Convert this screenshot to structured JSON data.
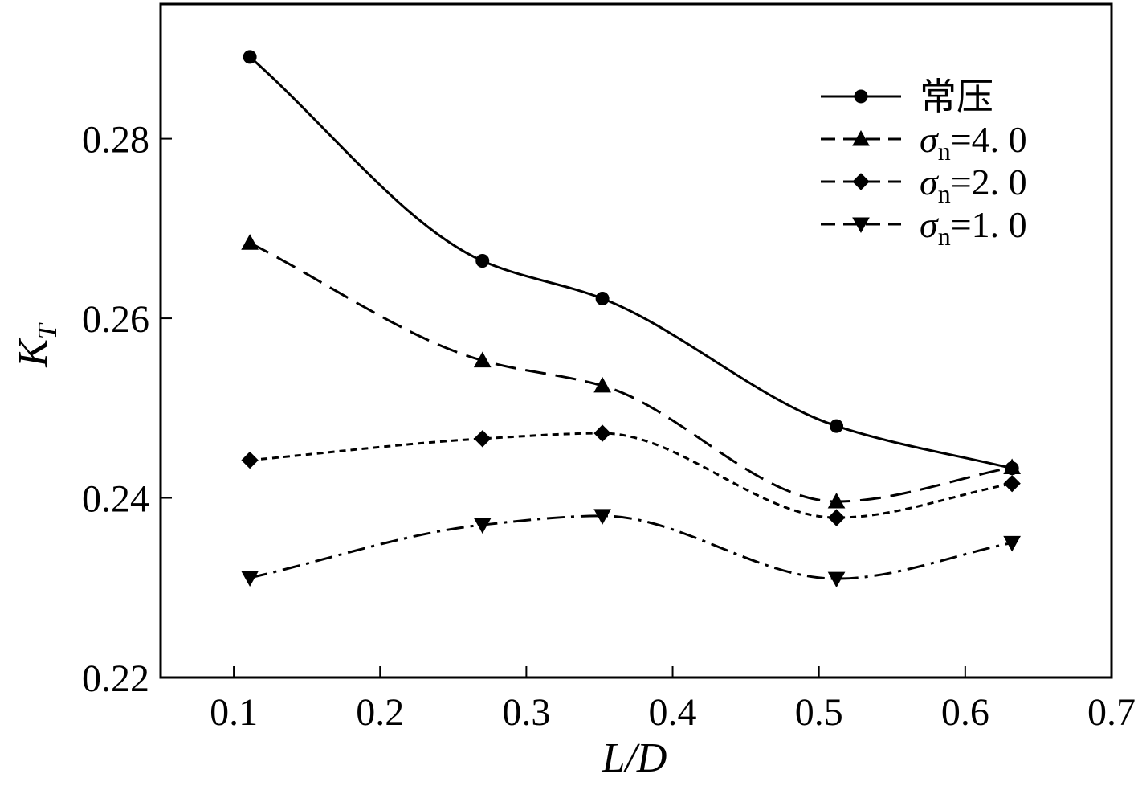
{
  "chart_data": {
    "type": "line",
    "title": "",
    "xlabel": "L/D",
    "ylabel": "K",
    "ylabel_subscript": "T",
    "xlim": [
      0.05,
      0.7
    ],
    "ylim": [
      0.22,
      0.295
    ],
    "x_ticks": [
      0.1,
      0.2,
      0.3,
      0.4,
      0.5,
      0.6,
      0.7
    ],
    "x_tick_labels": [
      "0.1",
      "0.2",
      "0.3",
      "0.4",
      "0.5",
      "0.6",
      "0.7"
    ],
    "y_ticks": [
      0.22,
      0.24,
      0.26,
      0.28
    ],
    "y_tick_labels": [
      "0.22",
      "0.24",
      "0.26",
      "0.28"
    ],
    "grid": false,
    "legend_position": "top-right",
    "x": [
      0.111,
      0.27,
      0.352,
      0.512,
      0.632
    ],
    "series": [
      {
        "name": "常压",
        "label_main": "常压",
        "label_sym": "",
        "label_sub": "",
        "label_val": "",
        "marker": "circle",
        "dash": "solid",
        "values": [
          0.2891,
          0.2664,
          0.2622,
          0.248,
          0.2433
        ]
      },
      {
        "name": "σn=4.0",
        "label_main": "",
        "label_sym": "σ",
        "label_sub": "n",
        "label_val": "=4. 0",
        "marker": "triangle-up",
        "dash": "dashed",
        "values": [
          0.2684,
          0.2553,
          0.2525,
          0.2396,
          0.2434
        ]
      },
      {
        "name": "σn=2.0",
        "label_main": "",
        "label_sym": "σ",
        "label_sub": "n",
        "label_val": "=2. 0",
        "marker": "diamond",
        "dash": "dotted",
        "values": [
          0.2442,
          0.2466,
          0.2472,
          0.2378,
          0.2416
        ]
      },
      {
        "name": "σn=1.0",
        "label_main": "",
        "label_sym": "σ",
        "label_sub": "n",
        "label_val": "=1. 0",
        "marker": "triangle-down",
        "dash": "dash-dot",
        "values": [
          0.2311,
          0.237,
          0.238,
          0.231,
          0.235
        ]
      }
    ]
  }
}
